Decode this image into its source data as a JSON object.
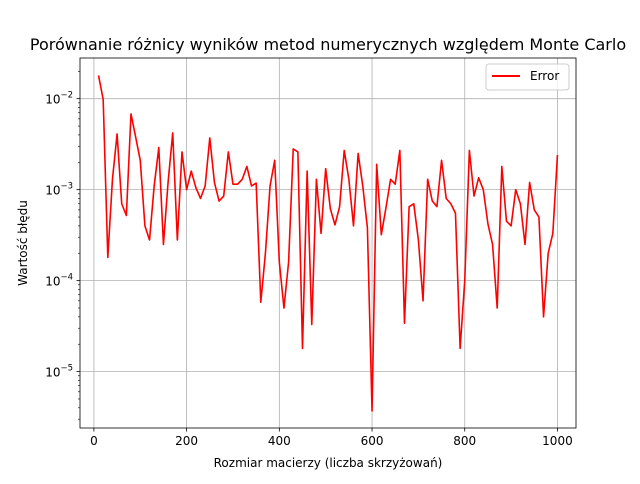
{
  "chart_data": {
    "type": "line",
    "title": "Porównanie różnicy wyników metod numerycznych względem Monte Carlo",
    "xlabel": "Rozmiar macierzy (liczba skrzyżowań)",
    "ylabel": "Wartość błędu",
    "xlim": [
      -30,
      1040
    ],
    "ylim": [
      2.4e-06,
      0.028
    ],
    "yscale": "log",
    "grid": true,
    "legend_position": "top-right",
    "x_ticks": [
      0,
      200,
      400,
      600,
      800,
      1000
    ],
    "x_tick_labels": [
      "0",
      "200",
      "400",
      "600",
      "800",
      "1000"
    ],
    "y_ticks": [
      1e-05,
      0.0001,
      0.001,
      0.01
    ],
    "y_tick_labels": [
      {
        "base": "10",
        "exp": "−5"
      },
      {
        "base": "10",
        "exp": "−4"
      },
      {
        "base": "10",
        "exp": "−3"
      },
      {
        "base": "10",
        "exp": "−2"
      }
    ],
    "series": [
      {
        "name": "Error",
        "color": "#ff0000",
        "x": [
          10,
          20,
          30,
          40,
          50,
          60,
          70,
          80,
          90,
          100,
          110,
          120,
          130,
          140,
          150,
          160,
          170,
          180,
          190,
          200,
          210,
          220,
          230,
          240,
          250,
          260,
          270,
          280,
          290,
          300,
          310,
          320,
          330,
          340,
          350,
          360,
          370,
          380,
          390,
          400,
          410,
          420,
          430,
          440,
          450,
          460,
          470,
          480,
          490,
          500,
          510,
          520,
          530,
          540,
          550,
          560,
          570,
          580,
          590,
          600,
          610,
          620,
          630,
          640,
          650,
          660,
          670,
          680,
          690,
          700,
          710,
          720,
          730,
          740,
          750,
          760,
          770,
          780,
          790,
          800,
          810,
          820,
          830,
          840,
          850,
          860,
          870,
          880,
          890,
          900,
          910,
          920,
          930,
          940,
          950,
          960,
          970,
          980,
          990,
          1000
        ],
        "y": [
          0.018,
          0.0098,
          0.00018,
          0.0013,
          0.0041,
          0.0007,
          0.00052,
          0.0068,
          0.0038,
          0.0021,
          0.0004,
          0.00028,
          0.0011,
          0.0029,
          0.00025,
          0.0012,
          0.0042,
          0.00028,
          0.0026,
          0.001,
          0.0016,
          0.00105,
          0.0008,
          0.0011,
          0.0037,
          0.0012,
          0.00075,
          0.00085,
          0.0026,
          0.00115,
          0.00115,
          0.0013,
          0.0018,
          0.0011,
          0.00118,
          5.8e-05,
          0.0002,
          0.0011,
          0.0021,
          0.00016,
          5e-05,
          0.00016,
          0.0028,
          0.0026,
          1.8e-05,
          0.0016,
          3.3e-05,
          0.0013,
          0.00033,
          0.0017,
          0.00062,
          0.00041,
          0.00065,
          0.0027,
          0.0013,
          0.0004,
          0.0025,
          0.0011,
          0.00038,
          3.7e-06,
          0.0019,
          0.00032,
          0.00063,
          0.0013,
          0.00115,
          0.0027,
          3.4e-05,
          0.00065,
          0.0007,
          0.00028,
          6e-05,
          0.0013,
          0.00075,
          0.00065,
          0.0021,
          0.0008,
          0.0007,
          0.00055,
          1.8e-05,
          0.0001,
          0.0027,
          0.00085,
          0.00135,
          0.001,
          0.00042,
          0.00025,
          5e-05,
          0.0018,
          0.00045,
          0.0004,
          0.001,
          0.0007,
          0.00025,
          0.0012,
          0.0006,
          0.0005,
          4e-05,
          0.0002,
          0.00033,
          0.0024
        ]
      }
    ]
  }
}
